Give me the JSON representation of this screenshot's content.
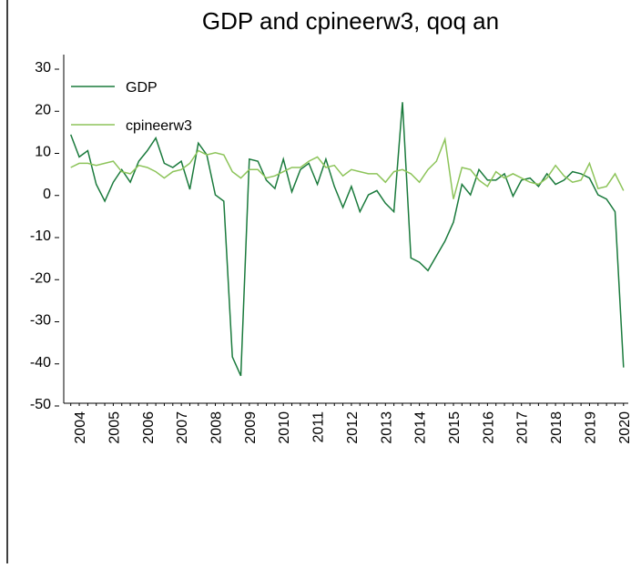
{
  "chart_data": {
    "type": "line",
    "title": "GDP and cpineerw3, qoq an",
    "categories": [
      null,
      "2004",
      null,
      null,
      null,
      "2005",
      null,
      null,
      null,
      "2006",
      null,
      null,
      null,
      "2007",
      null,
      null,
      null,
      "2008",
      null,
      null,
      null,
      "2009",
      null,
      null,
      null,
      "2010",
      null,
      null,
      null,
      "2011",
      null,
      null,
      null,
      "2012",
      null,
      null,
      null,
      "2013",
      null,
      null,
      null,
      "2014",
      null,
      null,
      null,
      "2015",
      null,
      null,
      null,
      "2016",
      null,
      null,
      null,
      "2017",
      null,
      null,
      null,
      "2018",
      null,
      null,
      null,
      "2019",
      null,
      null,
      null,
      "2020"
    ],
    "series": [
      {
        "name": "GDP",
        "color": "#1a7a3c",
        "values": [
          13.8,
          8.5,
          10,
          2,
          -2,
          2.5,
          5.5,
          2.5,
          7.5,
          10,
          13,
          7,
          6,
          7.5,
          0.8,
          11.8,
          9,
          -0.5,
          -2,
          -39,
          -43.5,
          8,
          7.5,
          3,
          1,
          8,
          0.2,
          5.5,
          7,
          2,
          8,
          1.5,
          -3.5,
          1.5,
          -4.5,
          -0.5,
          0.5,
          -2.5,
          -4.5,
          21.5,
          -15.5,
          -16.5,
          -18.5,
          -15,
          -11.5,
          -7,
          2,
          -0.5,
          5.5,
          3,
          3,
          4.5,
          -0.8,
          3,
          3.5,
          1.5,
          4.5,
          2,
          3,
          5,
          4.5,
          3.5,
          -0.5,
          -1.5,
          -4.5,
          -41.5
        ]
      },
      {
        "name": "cpineerw3",
        "color": "#8dc45a",
        "values": [
          6,
          7,
          7,
          6.5,
          7,
          7.5,
          5,
          4.5,
          6.5,
          6,
          5,
          3.5,
          5,
          5.5,
          7,
          10,
          9,
          9.5,
          9,
          5,
          3.5,
          5.5,
          5.5,
          3.5,
          4,
          5,
          6,
          6,
          7.5,
          8.5,
          6,
          6.5,
          4,
          5.5,
          5,
          4.5,
          4.5,
          2.5,
          5,
          5.5,
          4.5,
          2.5,
          5.5,
          7.5,
          12.7,
          -1.5,
          6,
          5.5,
          3,
          1.5,
          5,
          3.5,
          4.5,
          3.5,
          2.5,
          2,
          3.5,
          6.5,
          4,
          2.5,
          3,
          7,
          1,
          1.5,
          4.5,
          0.5
        ]
      }
    ],
    "ylim": [
      -50,
      30
    ],
    "yticks": [
      -50,
      -40,
      -30,
      -20,
      -10,
      0,
      10,
      20,
      30
    ],
    "legend": "upper left",
    "grid": false
  }
}
